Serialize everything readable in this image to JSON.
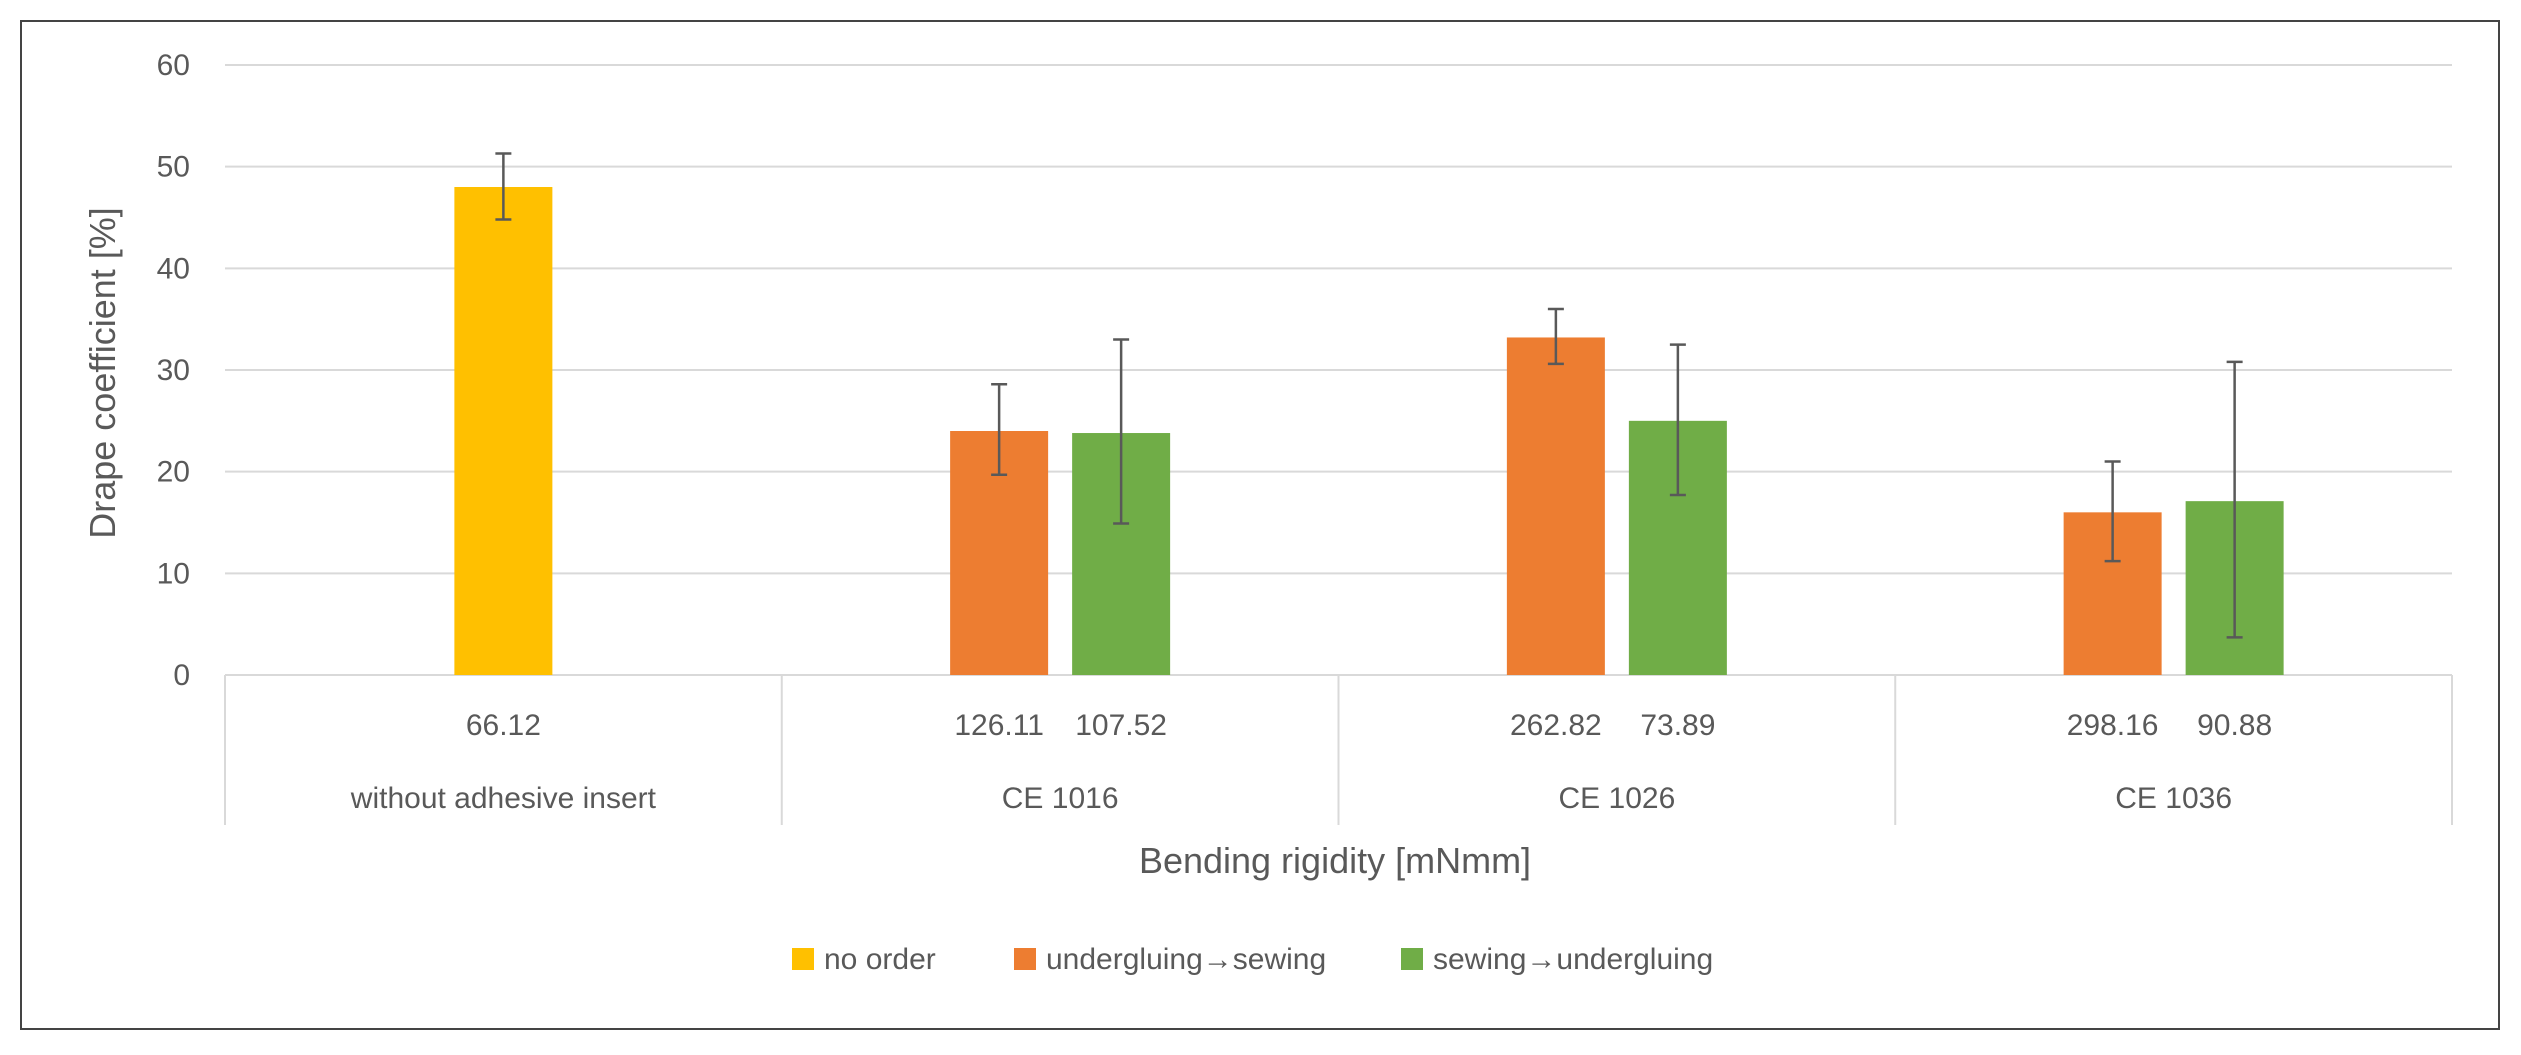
{
  "chart_data": {
    "type": "bar",
    "title": "",
    "xlabel": "Bending rigidity [mNmm]",
    "ylabel": "Drape coefficient  [%]",
    "ylim": [
      0,
      60
    ],
    "yticks": [
      0,
      10,
      20,
      30,
      40,
      50,
      60
    ],
    "grid": true,
    "legend_position": "bottom",
    "colors": {
      "no order": "#FFC000",
      "undergluing→sewing": "#ED7D31",
      "sewing→undergluing": "#70AD47"
    },
    "groups": [
      {
        "name": "without adhesive insert",
        "bars": [
          {
            "series": "no order",
            "value": 48,
            "err_low": 44.8,
            "err_high": 51.3,
            "rigidity_label": "66.12"
          }
        ]
      },
      {
        "name": "CE 1016",
        "bars": [
          {
            "series": "undergluing→sewing",
            "value": 24,
            "err_low": 19.7,
            "err_high": 28.6,
            "rigidity_label": "126.11"
          },
          {
            "series": "sewing→undergluing",
            "value": 23.8,
            "err_low": 14.9,
            "err_high": 33,
            "rigidity_label": "107.52"
          }
        ]
      },
      {
        "name": "CE 1026",
        "bars": [
          {
            "series": "undergluing→sewing",
            "value": 33.2,
            "err_low": 30.6,
            "err_high": 36,
            "rigidity_label": "262.82"
          },
          {
            "series": "sewing→undergluing",
            "value": 25,
            "err_low": 17.7,
            "err_high": 32.5,
            "rigidity_label": "73.89"
          }
        ]
      },
      {
        "name": "CE 1036",
        "bars": [
          {
            "series": "undergluing→sewing",
            "value": 16,
            "err_low": 11.2,
            "err_high": 21,
            "rigidity_label": "298.16"
          },
          {
            "series": "sewing→undergluing",
            "value": 17.1,
            "err_low": 3.7,
            "err_high": 30.8,
            "rigidity_label": "90.88"
          }
        ]
      }
    ],
    "legend": [
      "no order",
      "undergluing→sewing",
      "sewing→undergluing"
    ]
  }
}
